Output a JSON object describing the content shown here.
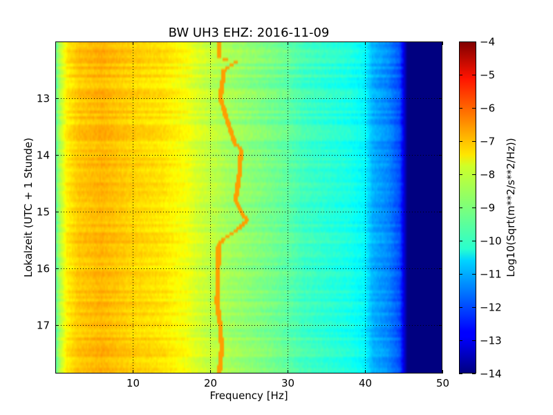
{
  "chart_data": {
    "type": "heatmap",
    "title": "BW UH3 EHZ: 2016-11-09",
    "xlabel": "Frequency [Hz]",
    "ylabel": "Lokalzeit (UTC + 1 Stunde)",
    "xlim": [
      0,
      50
    ],
    "ylim": [
      17.85,
      12.0
    ],
    "y_inverted": true,
    "x_ticks": [
      10,
      20,
      30,
      40,
      50
    ],
    "y_ticks": [
      13,
      14,
      15,
      16,
      17
    ],
    "grid": "dotted",
    "colormap": "jet",
    "colorbar": {
      "label": "Log10(Sqrt(m**2/s**2/Hz))",
      "range": [
        -14,
        -4
      ],
      "ticks": [
        -4,
        -5,
        -6,
        -7,
        -8,
        -9,
        -10,
        -11,
        -12,
        -13,
        -14
      ]
    },
    "spectral_profile": {
      "frequency_hz": [
        0,
        0.5,
        1.5,
        3,
        6,
        10,
        14,
        16,
        17,
        18,
        20,
        22,
        25,
        28,
        30,
        32,
        35,
        38,
        40,
        41,
        43,
        44.5,
        45.5,
        50
      ],
      "level": [
        -9.5,
        -8.6,
        -7.6,
        -7.2,
        -7.0,
        -7.3,
        -7.5,
        -7.75,
        -7.85,
        -8.1,
        -8.35,
        -8.6,
        -8.85,
        -9.1,
        -9.3,
        -9.6,
        -9.8,
        -10.0,
        -10.3,
        -11.0,
        -11.4,
        -12.0,
        -14.0,
        -14.0
      ]
    },
    "narrowband_line": {
      "level": -6.8,
      "time_h": [
        12.0,
        12.3,
        12.35,
        12.5,
        13.0,
        13.8,
        13.9,
        14.3,
        14.8,
        15.05,
        15.15,
        15.3,
        15.5,
        15.6,
        16.2,
        16.6,
        17.0,
        17.4,
        17.85
      ],
      "frequency_hz": [
        21.1,
        21.2,
        23.5,
        21.8,
        21.3,
        23.2,
        24.0,
        23.8,
        23.3,
        24.2,
        24.8,
        23.7,
        21.6,
        21.1,
        21.0,
        20.9,
        21.3,
        21.5,
        21.2
      ]
    }
  }
}
